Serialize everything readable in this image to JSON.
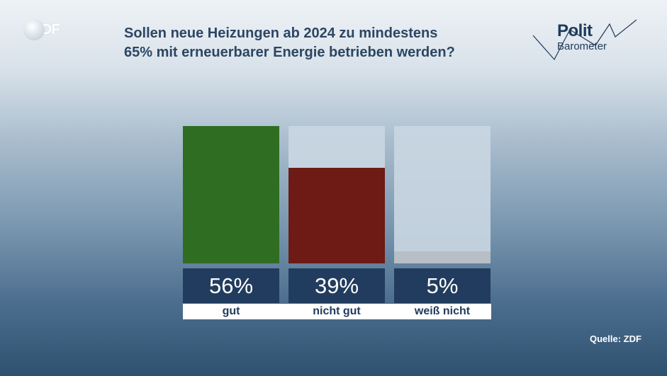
{
  "header": {
    "brand": "ZDF",
    "title_line1": "Sollen neue Heizungen ab 2024 zu mindestens",
    "title_line2": "65% mit erneuerbarer Energie betrieben werden?",
    "show_logo_polit": "Polit",
    "show_logo_barometer": "Barometer"
  },
  "footer": {
    "source": "Quelle: ZDF"
  },
  "colors": {
    "gut": "#2f6d22",
    "nicht_gut": "#6e1a15",
    "weiss_nicht": "#b8bec6",
    "track": "#c9d6e2",
    "value_box": "#213c5e"
  },
  "chart_data": {
    "type": "bar",
    "title": "Sollen neue Heizungen ab 2024 zu mindestens 65% mit erneuerbarer Energie betrieben werden?",
    "categories": [
      "gut",
      "nicht gut",
      "weiß nicht"
    ],
    "values": [
      56,
      39,
      5
    ],
    "value_labels": [
      "56%",
      "39%",
      "5%"
    ],
    "ylim": [
      0,
      56
    ],
    "unit": "%",
    "grid": false
  }
}
